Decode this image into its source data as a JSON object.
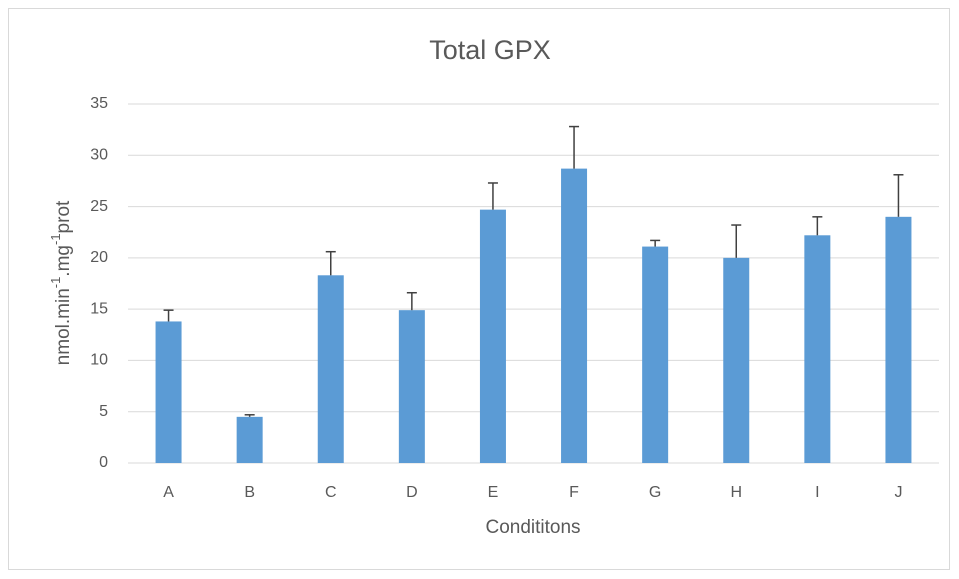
{
  "chart_data": {
    "type": "bar",
    "title": "Total GPX",
    "x_label": "Condititons",
    "y_label": [
      "nmol.min",
      "-1",
      ".mg",
      "-1",
      "prot"
    ],
    "categories": [
      "A",
      "B",
      "C",
      "D",
      "E",
      "F",
      "G",
      "H",
      "I",
      "J"
    ],
    "values": [
      13.8,
      4.5,
      18.3,
      14.9,
      24.7,
      28.7,
      21.1,
      20.0,
      22.2,
      24.0
    ],
    "errors": [
      1.1,
      0.2,
      2.3,
      1.7,
      2.6,
      4.1,
      0.6,
      3.2,
      1.8,
      4.1
    ],
    "color": "#5b9bd5",
    "error_color": "#404040",
    "ylim": [
      0,
      35
    ],
    "yticks": [
      0,
      5,
      10,
      15,
      20,
      25,
      30,
      35
    ],
    "grid": true
  }
}
